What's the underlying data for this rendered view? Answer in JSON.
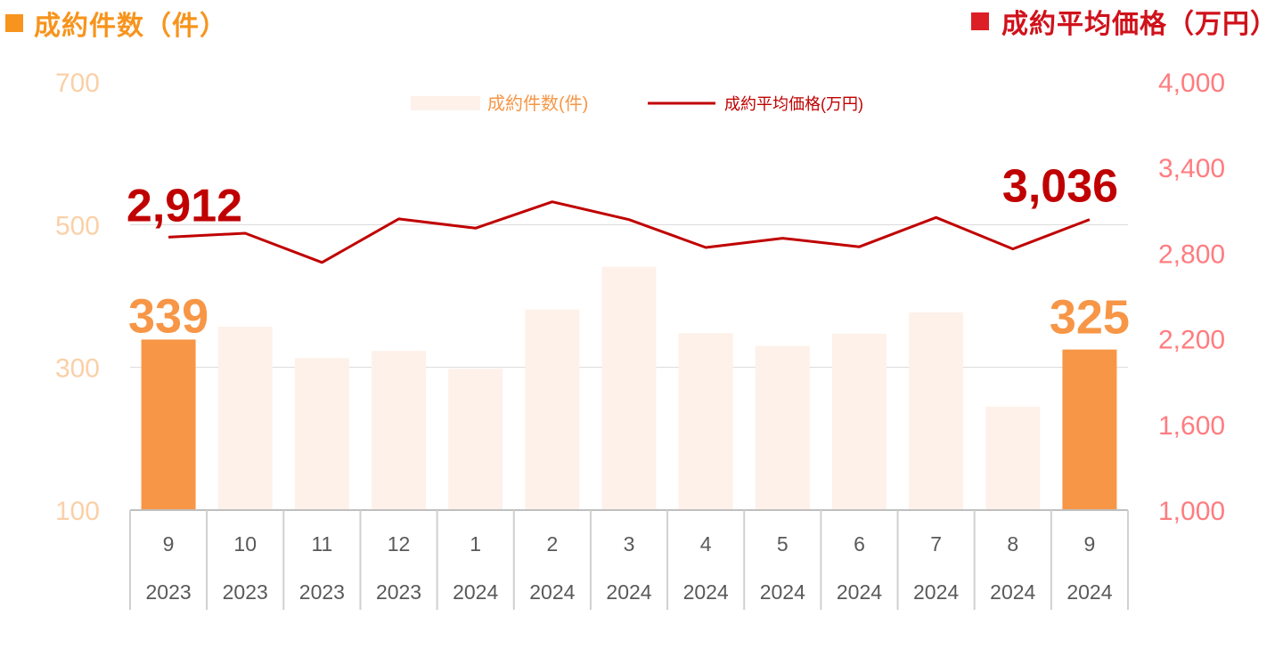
{
  "header": {
    "left_title": "成約件数（件）",
    "right_title": "成約平均価格（万円）"
  },
  "colors": {
    "bar_highlight": "#f79646",
    "bar_normal": "#fdf1e9",
    "line": "#c00000",
    "left_axis": "#fad0a8",
    "right_axis": "#ff7c80",
    "header_left": "#f7941d",
    "header_right": "#dc1f26"
  },
  "chart_data": {
    "type": "bar+line",
    "categories": [
      [
        "9",
        "2023"
      ],
      [
        "10",
        "2023"
      ],
      [
        "11",
        "2023"
      ],
      [
        "12",
        "2023"
      ],
      [
        "1",
        "2024"
      ],
      [
        "2",
        "2024"
      ],
      [
        "3",
        "2024"
      ],
      [
        "4",
        "2024"
      ],
      [
        "5",
        "2024"
      ],
      [
        "6",
        "2024"
      ],
      [
        "7",
        "2024"
      ],
      [
        "8",
        "2024"
      ],
      [
        "9",
        "2024"
      ]
    ],
    "series": [
      {
        "name": "成約件数(件)",
        "type": "bar",
        "axis": "left",
        "values": [
          339,
          357,
          313,
          323,
          298,
          381,
          441,
          348,
          330,
          347,
          377,
          245,
          325
        ],
        "highlight": [
          0,
          12
        ]
      },
      {
        "name": "成約平均価格(万円)",
        "type": "line",
        "axis": "right",
        "values": [
          2912,
          2940,
          2735,
          3040,
          2975,
          3160,
          3035,
          2840,
          2905,
          2845,
          3050,
          2830,
          3036
        ]
      }
    ],
    "left_axis": {
      "ylim": [
        100,
        700
      ],
      "ticks": [
        "100",
        "300",
        "500",
        "700"
      ],
      "tick_values": [
        100,
        300,
        500,
        700
      ]
    },
    "right_axis": {
      "ylim": [
        1000,
        4000
      ],
      "ticks": [
        "1,000",
        "1,600",
        "2,200",
        "2,800",
        "3,400",
        "4,000"
      ],
      "tick_values": [
        1000,
        1600,
        2200,
        2800,
        3400,
        4000
      ]
    },
    "bar_labels": {
      "first": "339",
      "last": "325"
    },
    "line_labels": {
      "first": "2,912",
      "last": "3,036"
    },
    "legend": [
      "成約件数(件)",
      "成約平均価格(万円)"
    ],
    "legend_position": "top-center",
    "grid": true
  }
}
